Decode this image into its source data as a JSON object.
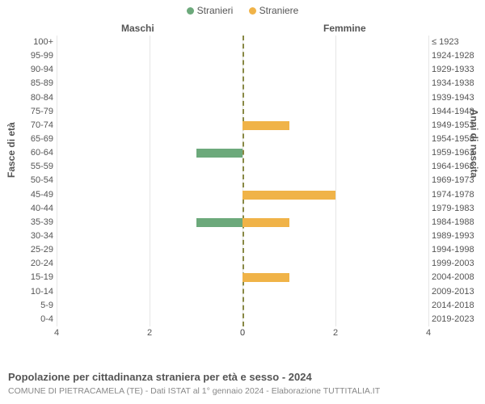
{
  "chart": {
    "type": "population-pyramid",
    "legend": [
      {
        "label": "Stranieri",
        "color": "#6ca97b"
      },
      {
        "label": "Straniere",
        "color": "#f0b348"
      }
    ],
    "header_left": "Maschi",
    "header_right": "Femmine",
    "y_axis_left_title": "Fasce di età",
    "y_axis_right_title": "Anni di nascita",
    "x_axis": {
      "max": 4,
      "step": 2,
      "ticks_left": [
        "4",
        "2",
        "0"
      ],
      "ticks_right": [
        "0",
        "2",
        "4"
      ]
    },
    "grid_color": "#e6e6e6",
    "plot_bg": "#ffffff",
    "bar_left_color": "#6ca97b",
    "bar_right_color": "#f0b348",
    "centerline_color": "#888844",
    "rows": [
      {
        "age": "100+",
        "birth": "≤ 1923",
        "m": 0,
        "f": 0
      },
      {
        "age": "95-99",
        "birth": "1924-1928",
        "m": 0,
        "f": 0
      },
      {
        "age": "90-94",
        "birth": "1929-1933",
        "m": 0,
        "f": 0
      },
      {
        "age": "85-89",
        "birth": "1934-1938",
        "m": 0,
        "f": 0
      },
      {
        "age": "80-84",
        "birth": "1939-1943",
        "m": 0,
        "f": 0
      },
      {
        "age": "75-79",
        "birth": "1944-1948",
        "m": 0,
        "f": 0
      },
      {
        "age": "70-74",
        "birth": "1949-1953",
        "m": 0,
        "f": 1
      },
      {
        "age": "65-69",
        "birth": "1954-1958",
        "m": 0,
        "f": 0
      },
      {
        "age": "60-64",
        "birth": "1959-1963",
        "m": 1,
        "f": 0
      },
      {
        "age": "55-59",
        "birth": "1964-1968",
        "m": 0,
        "f": 0
      },
      {
        "age": "50-54",
        "birth": "1969-1973",
        "m": 0,
        "f": 0
      },
      {
        "age": "45-49",
        "birth": "1974-1978",
        "m": 0,
        "f": 2
      },
      {
        "age": "40-44",
        "birth": "1979-1983",
        "m": 0,
        "f": 0
      },
      {
        "age": "35-39",
        "birth": "1984-1988",
        "m": 1,
        "f": 1
      },
      {
        "age": "30-34",
        "birth": "1989-1993",
        "m": 0,
        "f": 0
      },
      {
        "age": "25-29",
        "birth": "1994-1998",
        "m": 0,
        "f": 0
      },
      {
        "age": "20-24",
        "birth": "1999-2003",
        "m": 0,
        "f": 0
      },
      {
        "age": "15-19",
        "birth": "2004-2008",
        "m": 0,
        "f": 1
      },
      {
        "age": "10-14",
        "birth": "2009-2013",
        "m": 0,
        "f": 0
      },
      {
        "age": "5-9",
        "birth": "2014-2018",
        "m": 0,
        "f": 0
      },
      {
        "age": "0-4",
        "birth": "2019-2023",
        "m": 0,
        "f": 0
      }
    ]
  },
  "footer": {
    "title": "Popolazione per cittadinanza straniera per età e sesso - 2024",
    "subtitle": "COMUNE DI PIETRACAMELA (TE) - Dati ISTAT al 1° gennaio 2024 - Elaborazione TUTTITALIA.IT"
  }
}
